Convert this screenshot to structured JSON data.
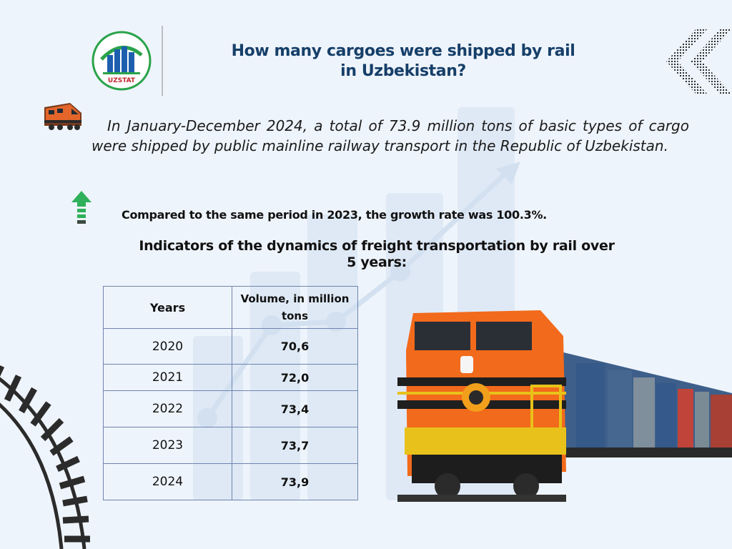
{
  "logo": {
    "label": "UZSTAT",
    "icon": "uzstat-logo-icon"
  },
  "title_line1": "How many cargoes were shipped by rail",
  "title_line2": "in Uzbekistan?",
  "intro": "In January-December 2024, a total of 73.9 million tons of basic types of cargo were shipped by public mainline railway transport in the Republic of Uzbekistan.",
  "growth": "Compared to the same period in 2023, the growth rate was 100.3%.",
  "table_title_line1": "Indicators of the dynamics of freight transportation by rail over",
  "table_title_line2": "5 years:",
  "table": {
    "col_years": "Years",
    "col_volume_line1": "Volume, in million",
    "col_volume_line2": "tons",
    "rows": [
      {
        "year": "2020",
        "value": "70,6"
      },
      {
        "year": "2021",
        "value": "72,0"
      },
      {
        "year": "2022",
        "value": "73,4"
      },
      {
        "year": "2023",
        "value": "73,7"
      },
      {
        "year": "2024",
        "value": "73,9"
      }
    ]
  },
  "colors": {
    "title": "#163f69",
    "background": "#eef4fb",
    "arrow_green": "#2fb05a",
    "table_border": "#6f83b0",
    "locomotive_orange": "#f26a1b"
  }
}
